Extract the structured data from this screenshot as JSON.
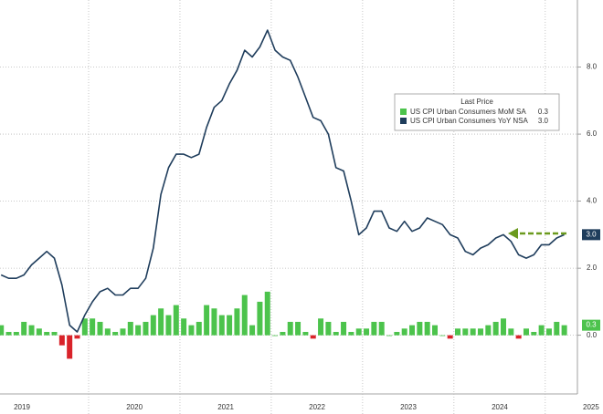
{
  "chart_data": {
    "type": "bar-line",
    "legend_title": "Last Price",
    "categories": [
      "2019",
      null,
      null,
      null,
      null,
      null,
      null,
      null,
      null,
      null,
      null,
      null,
      "2020",
      null,
      null,
      null,
      null,
      null,
      null,
      null,
      null,
      null,
      null,
      null,
      "2021",
      null,
      null,
      null,
      null,
      null,
      null,
      null,
      null,
      null,
      null,
      null,
      "2022",
      null,
      null,
      null,
      null,
      null,
      null,
      null,
      null,
      null,
      null,
      null,
      "2023",
      null,
      null,
      null,
      null,
      null,
      null,
      null,
      null,
      null,
      null,
      null,
      "2024",
      null,
      null,
      null,
      null,
      null,
      null,
      null,
      null,
      null,
      null,
      null,
      "2025",
      null,
      null
    ],
    "series": [
      {
        "name": "US CPI Urban Consumers MoM SA",
        "kind": "bar",
        "color": "#4cc34c",
        "negative_color": "#d9232a",
        "last_price_label": "0.3",
        "values": [
          0.3,
          0.1,
          0.1,
          0.4,
          0.3,
          0.2,
          0.1,
          0.1,
          -0.3,
          -0.7,
          -0.1,
          0.5,
          0.5,
          0.4,
          0.2,
          0.1,
          0.2,
          0.4,
          0.3,
          0.4,
          0.6,
          0.8,
          0.6,
          0.9,
          0.5,
          0.3,
          0.4,
          0.9,
          0.8,
          0.6,
          0.6,
          0.8,
          1.2,
          0.3,
          1.0,
          1.3,
          0.0,
          0.1,
          0.4,
          0.4,
          0.1,
          -0.1,
          0.5,
          0.4,
          0.1,
          0.4,
          0.1,
          0.2,
          0.2,
          0.4,
          0.4,
          0.0,
          0.1,
          0.2,
          0.3,
          0.4,
          0.4,
          0.3,
          0.0,
          -0.1,
          0.2,
          0.2,
          0.2,
          0.2,
          0.3,
          0.4,
          0.5,
          0.2,
          -0.1,
          0.2,
          0.1,
          0.3,
          0.2,
          0.4,
          0.3
        ]
      },
      {
        "name": "US CPI Urban Consumers YoY NSA",
        "kind": "line",
        "color": "#1f3d5c",
        "last_price_label": "3.0",
        "values": [
          1.8,
          1.7,
          1.7,
          1.8,
          2.1,
          2.3,
          2.5,
          2.3,
          1.5,
          0.3,
          0.1,
          0.6,
          1.0,
          1.3,
          1.4,
          1.2,
          1.2,
          1.4,
          1.4,
          1.7,
          2.6,
          4.2,
          5.0,
          5.4,
          5.4,
          5.3,
          5.4,
          6.2,
          6.8,
          7.0,
          7.5,
          7.9,
          8.5,
          8.3,
          8.6,
          9.1,
          8.5,
          8.3,
          8.2,
          7.7,
          7.1,
          6.5,
          6.4,
          6.0,
          5.0,
          4.9,
          4.0,
          3.0,
          3.2,
          3.7,
          3.7,
          3.2,
          3.1,
          3.4,
          3.1,
          3.2,
          3.5,
          3.4,
          3.3,
          3.0,
          2.9,
          2.5,
          2.4,
          2.6,
          2.7,
          2.9,
          3.0,
          2.8,
          2.4,
          2.3,
          2.4,
          2.7,
          2.7,
          2.9,
          3.0
        ]
      }
    ],
    "ylim": [
      -1.75,
      10
    ],
    "yticks": [
      {
        "value": 0,
        "label": "0.0"
      },
      {
        "value": 2,
        "label": "2.0"
      },
      {
        "value": 4,
        "label": "4.0"
      },
      {
        "value": 6,
        "label": "6.0"
      },
      {
        "value": 8,
        "label": "8.0"
      }
    ],
    "grid": true
  }
}
